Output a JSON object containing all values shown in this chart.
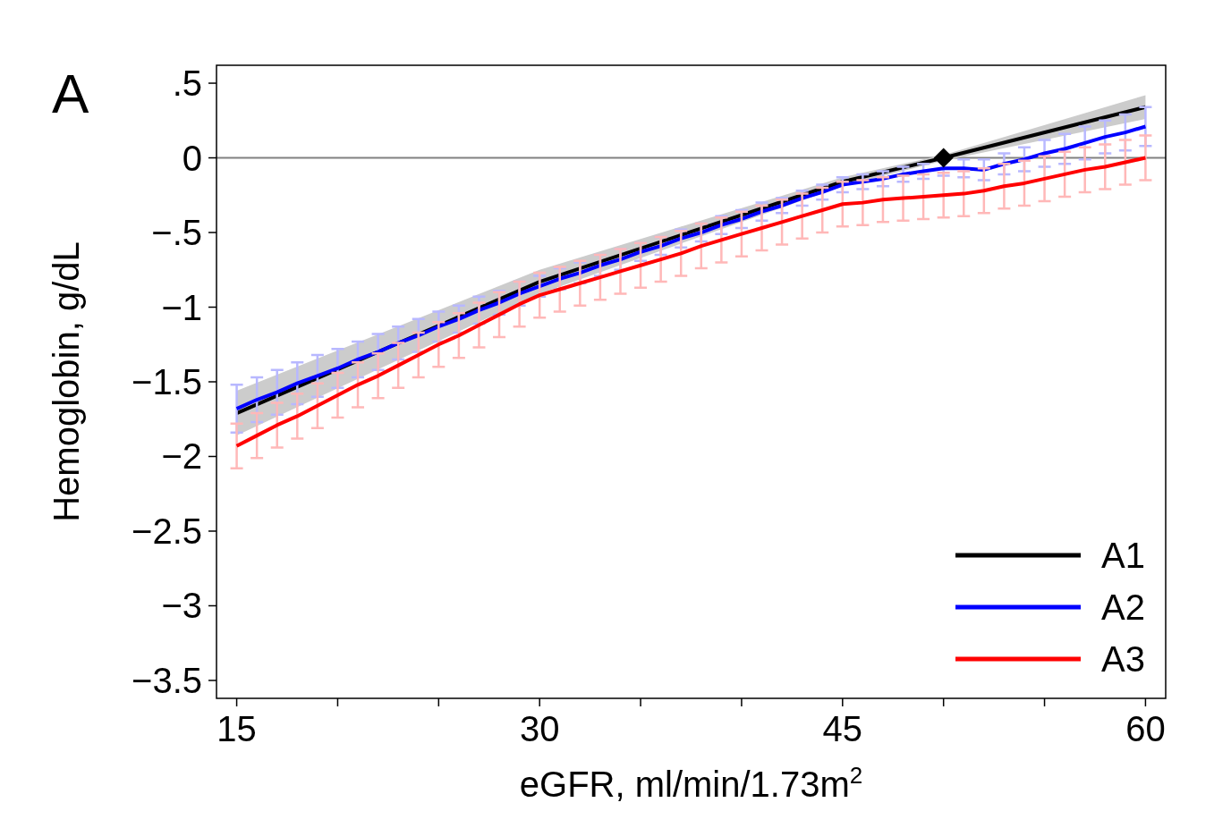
{
  "chart_data": {
    "type": "line",
    "title": "A",
    "xlabel": "eGFR, ml/min/1.73m$^{2}$",
    "ylabel": "Hemoglobin, g/dL",
    "xlim": [
      14,
      61
    ],
    "xticks": [
      15,
      {
        "value": 20,
        "label": null
      },
      {
        "value": 25,
        "label": null
      },
      30,
      {
        "value": 35,
        "label": null
      },
      {
        "value": 40,
        "label": null
      },
      45,
      {
        "value": 50,
        "label": null
      },
      {
        "value": 55,
        "label": null
      },
      60
    ],
    "ylim": [
      -3.62,
      0.62
    ],
    "yticks": [
      {
        "value": 0.5,
        "label": ".5"
      },
      0,
      {
        "value": -0.5,
        "label": "−.5"
      },
      {
        "value": -1,
        "label": "−1"
      },
      {
        "value": -1.5,
        "label": "−1.5"
      },
      {
        "value": -2,
        "label": "−2"
      },
      {
        "value": -2.5,
        "label": "−2.5"
      },
      {
        "value": -3,
        "label": "−3"
      },
      {
        "value": -3.5,
        "label": "−3.5"
      }
    ],
    "grid": false,
    "legend": "bottom right",
    "line_style": "solid",
    "ref_lines": [
      {
        "axis": "y",
        "value": 0,
        "color": "#808080"
      }
    ],
    "series": [
      {
        "name": "A1",
        "color": "#000000",
        "x": [
          15,
          30,
          45,
          50,
          60
        ],
        "values": [
          -1.71,
          -0.83,
          -0.16,
          0,
          0.34
        ],
        "lower": [
          -1.86,
          -0.91,
          -0.19,
          -0.02,
          0.26
        ],
        "upper": [
          -1.56,
          -0.75,
          -0.13,
          0.02,
          0.42
        ]
      },
      {
        "name": "A2",
        "color": "#0000ff",
        "x": [
          15,
          16,
          17,
          18,
          19,
          20,
          21,
          22,
          23,
          24,
          25,
          26,
          27,
          28,
          29,
          30,
          31,
          32,
          33,
          34,
          35,
          36,
          37,
          38,
          39,
          40,
          41,
          42,
          43,
          44,
          45,
          46,
          47,
          48,
          49,
          50,
          51,
          52,
          53,
          54,
          55,
          56,
          57,
          58,
          59,
          60
        ],
        "values": [
          -1.68,
          -1.62,
          -1.57,
          -1.51,
          -1.46,
          -1.41,
          -1.35,
          -1.3,
          -1.24,
          -1.19,
          -1.13,
          -1.08,
          -1.02,
          -0.97,
          -0.91,
          -0.86,
          -0.81,
          -0.77,
          -0.72,
          -0.68,
          -0.63,
          -0.59,
          -0.54,
          -0.5,
          -0.45,
          -0.41,
          -0.36,
          -0.32,
          -0.27,
          -0.23,
          -0.18,
          -0.16,
          -0.14,
          -0.11,
          -0.09,
          -0.07,
          -0.07,
          -0.08,
          -0.04,
          -0.01,
          0.03,
          0.06,
          0.1,
          0.14,
          0.17,
          0.21
        ],
        "errors": [
          0.16,
          0.15,
          0.15,
          0.14,
          0.14,
          0.13,
          0.12,
          0.12,
          0.11,
          0.11,
          0.1,
          0.09,
          0.09,
          0.08,
          0.08,
          0.07,
          0.07,
          0.07,
          0.07,
          0.07,
          0.06,
          0.06,
          0.06,
          0.06,
          0.06,
          0.06,
          0.06,
          0.05,
          0.05,
          0.05,
          0.05,
          0.05,
          0.05,
          0.05,
          0.05,
          0.05,
          0.06,
          0.07,
          0.07,
          0.08,
          0.09,
          0.1,
          0.11,
          0.11,
          0.12,
          0.13
        ]
      },
      {
        "name": "A3",
        "color": "#ff0000",
        "x": [
          15,
          16,
          17,
          18,
          19,
          20,
          21,
          22,
          23,
          24,
          25,
          26,
          27,
          28,
          29,
          30,
          31,
          32,
          33,
          34,
          35,
          36,
          37,
          38,
          39,
          40,
          41,
          42,
          43,
          44,
          45,
          46,
          47,
          48,
          49,
          50,
          51,
          52,
          53,
          54,
          55,
          56,
          57,
          58,
          59,
          60
        ],
        "values": [
          -1.93,
          -1.86,
          -1.79,
          -1.73,
          -1.66,
          -1.59,
          -1.52,
          -1.46,
          -1.39,
          -1.32,
          -1.25,
          -1.19,
          -1.12,
          -1.05,
          -0.98,
          -0.92,
          -0.88,
          -0.84,
          -0.8,
          -0.76,
          -0.72,
          -0.68,
          -0.64,
          -0.59,
          -0.55,
          -0.51,
          -0.47,
          -0.43,
          -0.39,
          -0.35,
          -0.31,
          -0.3,
          -0.28,
          -0.27,
          -0.26,
          -0.25,
          -0.24,
          -0.22,
          -0.19,
          -0.17,
          -0.14,
          -0.11,
          -0.08,
          -0.06,
          -0.03,
          0
        ],
        "errors": [
          0.15,
          0.15,
          0.15,
          0.15,
          0.15,
          0.15,
          0.15,
          0.15,
          0.15,
          0.15,
          0.15,
          0.15,
          0.15,
          0.15,
          0.15,
          0.15,
          0.15,
          0.15,
          0.15,
          0.15,
          0.15,
          0.15,
          0.15,
          0.15,
          0.15,
          0.15,
          0.15,
          0.15,
          0.15,
          0.15,
          0.15,
          0.15,
          0.15,
          0.15,
          0.15,
          0.15,
          0.15,
          0.15,
          0.15,
          0.15,
          0.15,
          0.15,
          0.15,
          0.15,
          0.15,
          0.15
        ]
      },
      {
        "type": "scatter",
        "marker": "diamond",
        "color": "#000000",
        "x": [
          50
        ],
        "values": [
          0
        ]
      }
    ]
  }
}
